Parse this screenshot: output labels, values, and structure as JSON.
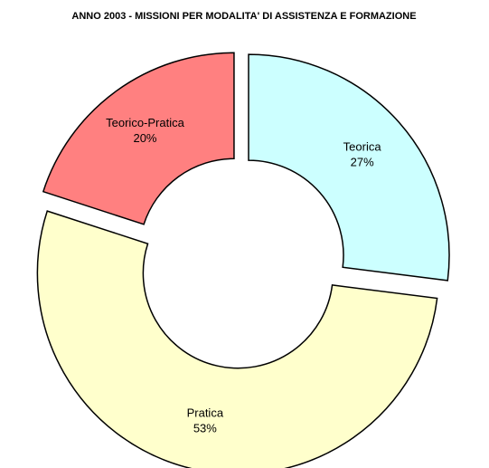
{
  "chart_data": {
    "type": "donut",
    "title": "ANNO 2003 - MISSIONI PER MODALITA' DI ASSISTENZA E FORMAZIONE",
    "categories": [
      "Teorica",
      "Pratica",
      "Teorico-Pratica"
    ],
    "values": [
      27,
      53,
      20
    ],
    "value_labels": [
      "27%",
      "53%",
      "20%"
    ],
    "colors": [
      "#ccffff",
      "#ffffcc",
      "#ff8080"
    ]
  }
}
